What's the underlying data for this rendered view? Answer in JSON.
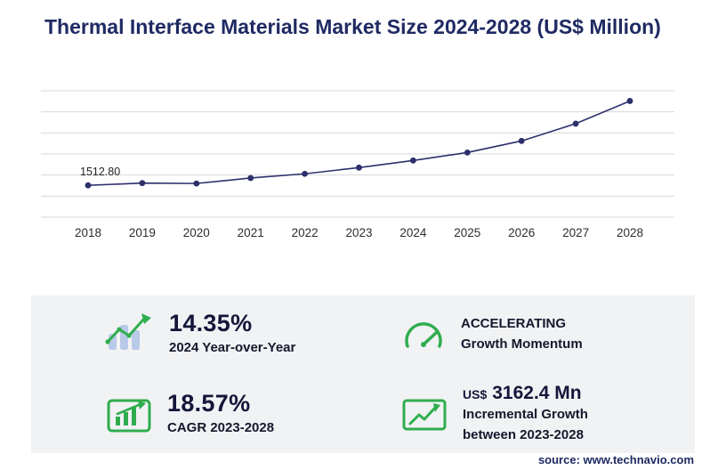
{
  "title": "Thermal Interface Materials Market Size 2024-2028 (US$ Million)",
  "chart_data": {
    "type": "line",
    "title": "Thermal Interface Materials Market Size 2024-2028 (US$ Million)",
    "categories": [
      "2018",
      "2019",
      "2020",
      "2021",
      "2022",
      "2023",
      "2024",
      "2025",
      "2026",
      "2027",
      "2028"
    ],
    "values": [
      1512.8,
      1620,
      1600,
      1860,
      2060,
      2353.8,
      2691.6,
      3070,
      3620,
      4440,
      5516.2
    ],
    "first_point_label": "1512.80",
    "xlabel": "",
    "ylabel": "US$ Million",
    "ylim": [
      0,
      6000
    ],
    "grid": true,
    "legend": "none",
    "line_color": "#2c2f6b",
    "marker_color": "#2c2f6b",
    "gridline_color": "#d8d8da",
    "tick_label_color": "#2d2d2d"
  },
  "stats": {
    "yoy": {
      "value": "14.35%",
      "label": "2024 Year-over-Year"
    },
    "momentum": {
      "line1": "ACCELERATING",
      "line2": "Growth Momentum"
    },
    "cagr": {
      "value": "18.57%",
      "label": "CAGR 2023-2028"
    },
    "incremental": {
      "currency": "US$",
      "value": "3162.4 Mn",
      "line1": "Incremental Growth",
      "line2": "between 2023-2028"
    }
  },
  "source": "source: www.technavio.com",
  "colors": {
    "accent_green": "#2fad4e",
    "navy": "#1f2a63",
    "panel": "#f1f2f4",
    "bar_blue": "#b9c9e8"
  }
}
